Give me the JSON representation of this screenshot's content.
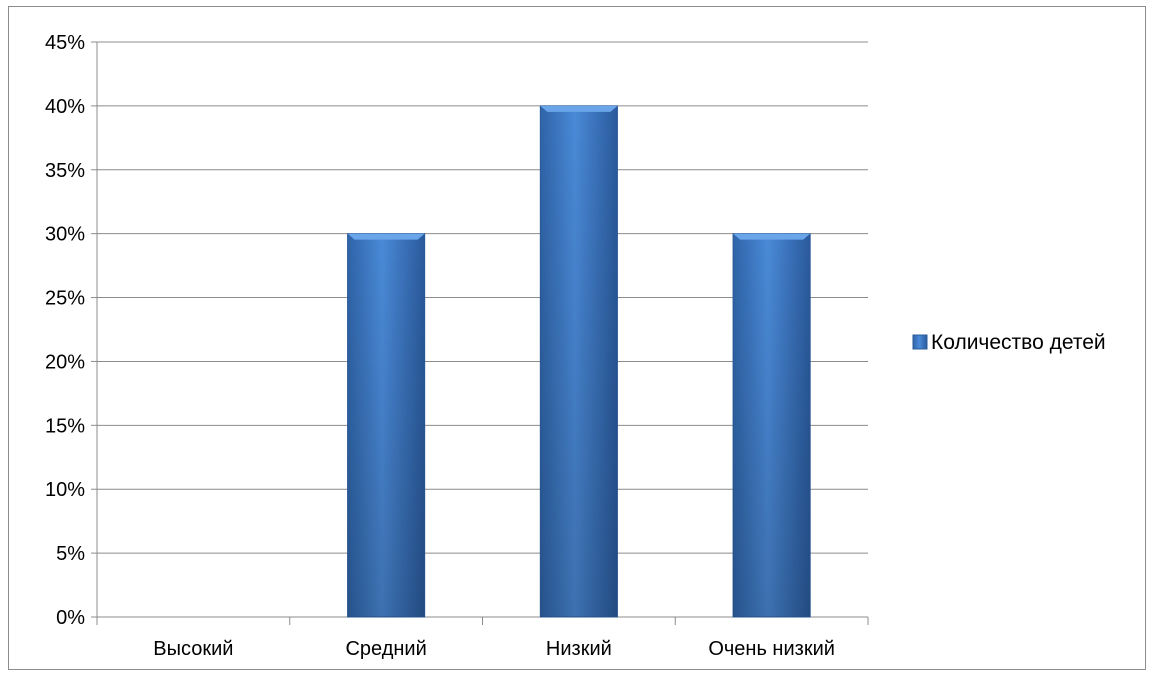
{
  "chart_data": {
    "type": "bar",
    "title": "",
    "xlabel": "",
    "ylabel": "",
    "categories": [
      "Высокий",
      "Средний",
      "Низкий",
      "Очень низкий"
    ],
    "series": [
      {
        "name": "Количество детей",
        "values": [
          0,
          0.3,
          0.4,
          0.3
        ],
        "color": "#3f7fcf"
      }
    ],
    "ylim": [
      0,
      0.45
    ],
    "y_ticks": [
      0,
      0.05,
      0.1,
      0.15,
      0.2,
      0.25,
      0.3,
      0.35,
      0.4,
      0.45
    ],
    "y_tick_labels": [
      "0%",
      "5%",
      "10%",
      "15%",
      "20%",
      "25%",
      "30%",
      "35%",
      "40%",
      "45%"
    ],
    "grid": true,
    "legend_position": "right"
  }
}
